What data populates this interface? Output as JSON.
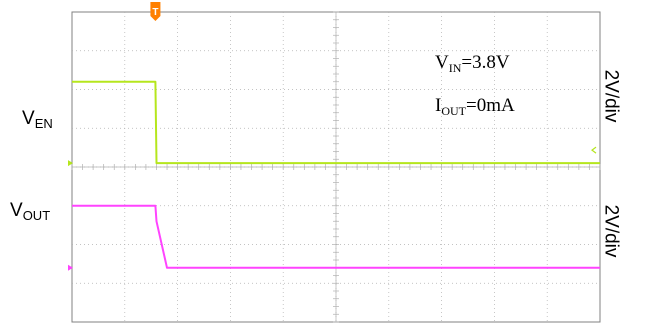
{
  "chart_data": {
    "type": "line",
    "x": [
      0,
      1.58,
      1.6,
      1.8,
      10
    ],
    "xlim": [
      0,
      10
    ],
    "ylim": [
      -4,
      4
    ],
    "series": [
      {
        "name": "VEN",
        "values": [
          2.2,
          2.2,
          0.1,
          0.1,
          0.1
        ],
        "color": "#b5e61d"
      },
      {
        "name": "VOUT",
        "values": [
          -1.0,
          -1.0,
          -1.4,
          -2.6,
          -2.6
        ],
        "color": "#ff44ff"
      }
    ],
    "channel_labels": {
      "ven_main": "V",
      "ven_sub": "EN",
      "vout_main": "V",
      "vout_sub": "OUT"
    },
    "scale_labels": [
      "2V/div",
      "2V/div"
    ],
    "annotations": {
      "vin_main": "V",
      "vin_sub": "IN",
      "vin_val": "=3.8V",
      "iout_main": "I",
      "iout_sub": "OUT",
      "iout_val": "=0mA"
    },
    "trigger_label": "T",
    "grid": true,
    "colors": {
      "trigger": "#ff8000",
      "grid": "#b0b0b0",
      "frame": "#808080"
    }
  }
}
